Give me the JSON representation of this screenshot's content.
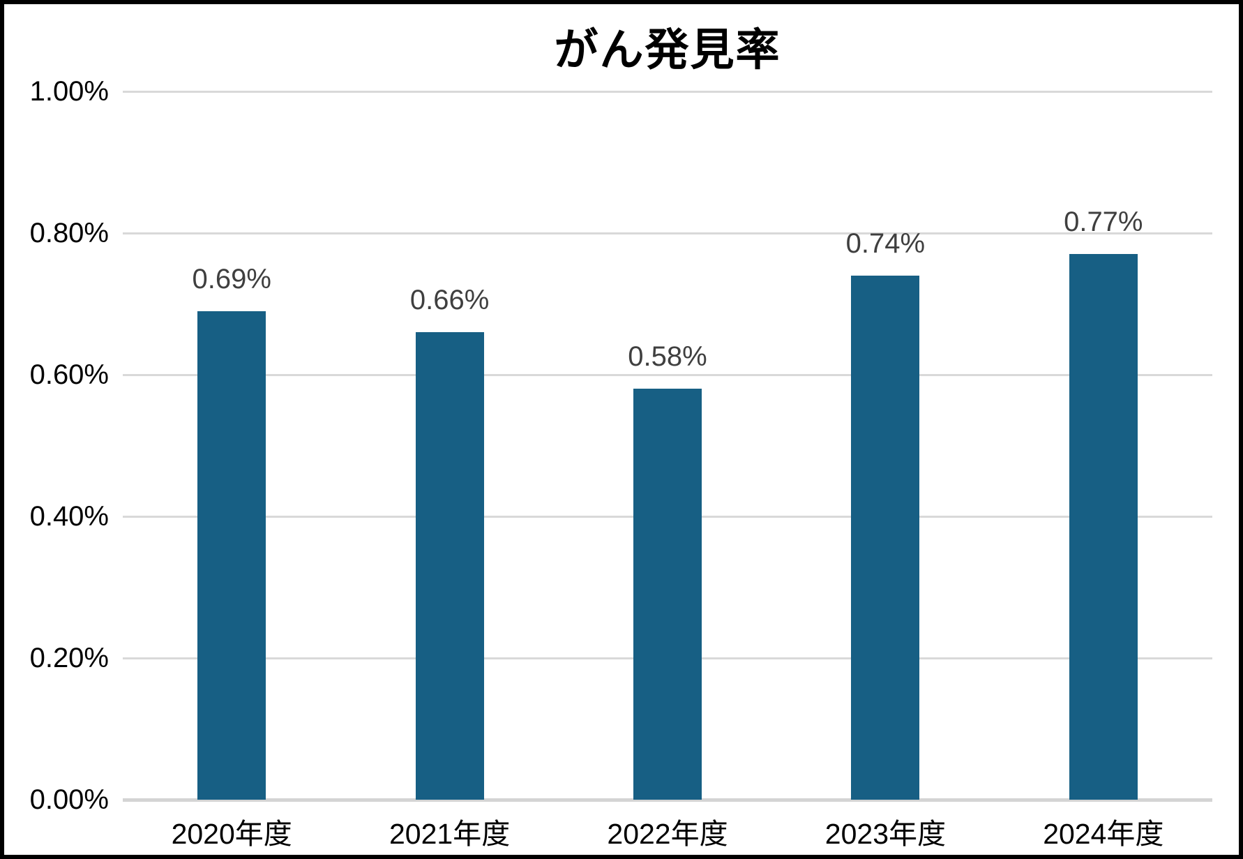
{
  "page": {
    "background": "#FFFFFF",
    "frame_border_color": "#000000"
  },
  "chart_data": {
    "type": "bar",
    "title": "がん発見率",
    "categories": [
      "2020年度",
      "2021年度",
      "2022年度",
      "2023年度",
      "2024年度"
    ],
    "values": [
      0.69,
      0.66,
      0.58,
      0.74,
      0.77
    ],
    "value_labels": [
      "0.69%",
      "0.66%",
      "0.58%",
      "0.74%",
      "0.77%"
    ],
    "xlabel": "",
    "ylabel": "",
    "ylim": [
      0,
      1.0
    ],
    "ytick_step": 0.2,
    "ytick_labels": [
      "0.00%",
      "0.20%",
      "0.40%",
      "0.60%",
      "0.80%",
      "1.00%"
    ],
    "grid": true,
    "legend": false,
    "colors": {
      "bar": "#175F84",
      "value_label": "#3F3F3F",
      "tick_label": "#000000",
      "gridline": "#D9D9D9",
      "axis_line": "#D4D4D4",
      "title": "#000000"
    }
  }
}
